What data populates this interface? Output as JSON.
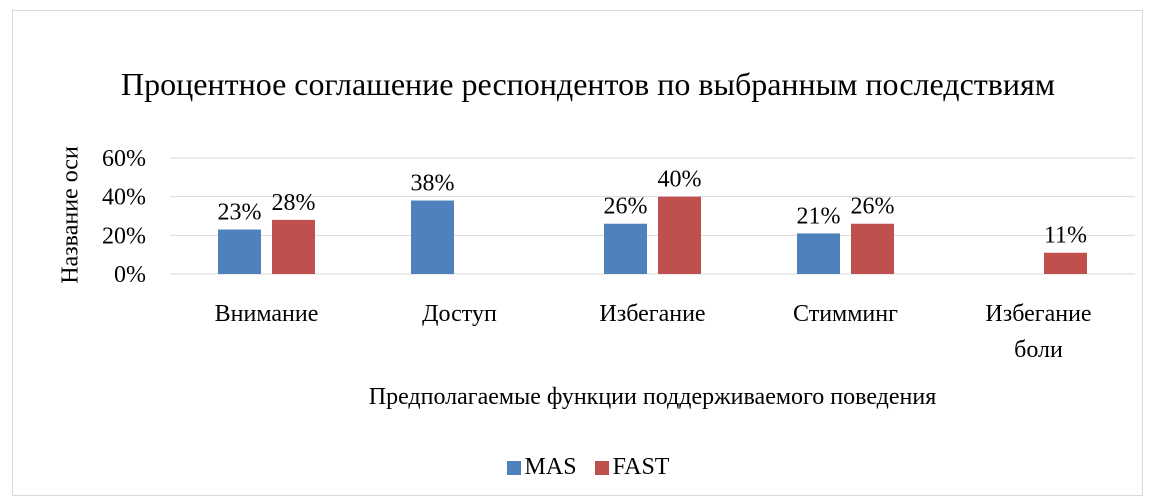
{
  "chart_data": {
    "type": "bar",
    "title": "Процентное соглашение респондентов по выбранным последствиям",
    "x_label": "Предполагаемые функции поддерживаемого поведения",
    "y_label": "Название оси",
    "categories": [
      "Внимание",
      "Доступ",
      "Избегание",
      "Стимминг",
      "Избегание боли"
    ],
    "series": [
      {
        "name": "MAS",
        "color": "#4f81bd",
        "values": [
          23,
          38,
          26,
          21,
          null
        ],
        "value_labels": [
          "23%",
          "38%",
          "26%",
          "21%",
          null
        ]
      },
      {
        "name": "FAST",
        "color": "#c0504d",
        "values": [
          28,
          null,
          40,
          26,
          11
        ],
        "value_labels": [
          "28%",
          null,
          "40%",
          "26%",
          "11%"
        ]
      }
    ],
    "ylim": [
      0,
      60
    ],
    "yticks": [
      {
        "value": 0,
        "label": "0%"
      },
      {
        "value": 20,
        "label": "20%"
      },
      {
        "value": 40,
        "label": "40%"
      },
      {
        "value": 60,
        "label": "60%"
      }
    ],
    "grid": true,
    "legend": "bottom"
  }
}
